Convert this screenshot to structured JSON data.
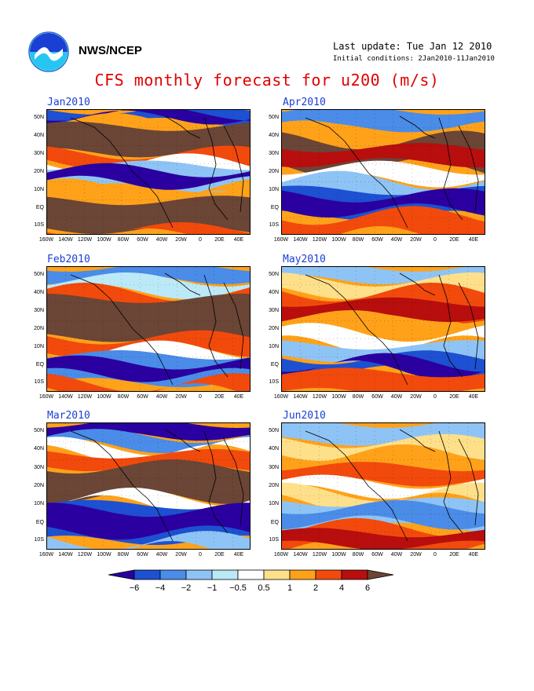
{
  "header": {
    "org": "NWS/NCEP",
    "last_update": "Last update: Tue Jan 12 2010",
    "initial_conditions": "Initial conditions: 2Jan2010-11Jan2010",
    "title": "CFS monthly forecast for u200 (m/s)"
  },
  "chart_data": {
    "type": "heatmap",
    "variable": "u200 (m/s)",
    "panels": [
      "Jan2010",
      "Feb2010",
      "Mar2010",
      "Apr2010",
      "May2010",
      "Jun2010"
    ],
    "x_ticks": [
      "160W",
      "140W",
      "120W",
      "100W",
      "80W",
      "60W",
      "40W",
      "20W",
      "0",
      "20E",
      "40E"
    ],
    "y_ticks": [
      "50N",
      "40N",
      "30N",
      "20N",
      "10N",
      "EQ",
      "10S"
    ],
    "colorbar": {
      "levels": [
        "-6",
        "-4",
        "-2",
        "-1",
        "-0.5",
        "0.5",
        "1",
        "2",
        "4",
        "6"
      ],
      "colors": [
        "#2a00a0",
        "#1e50d2",
        "#4a8ce8",
        "#8ec4f5",
        "#bce9f8",
        "#ffffff",
        "#ffe08a",
        "#ffa21a",
        "#f24a0c",
        "#b80e0e",
        "#6b4536"
      ]
    }
  }
}
